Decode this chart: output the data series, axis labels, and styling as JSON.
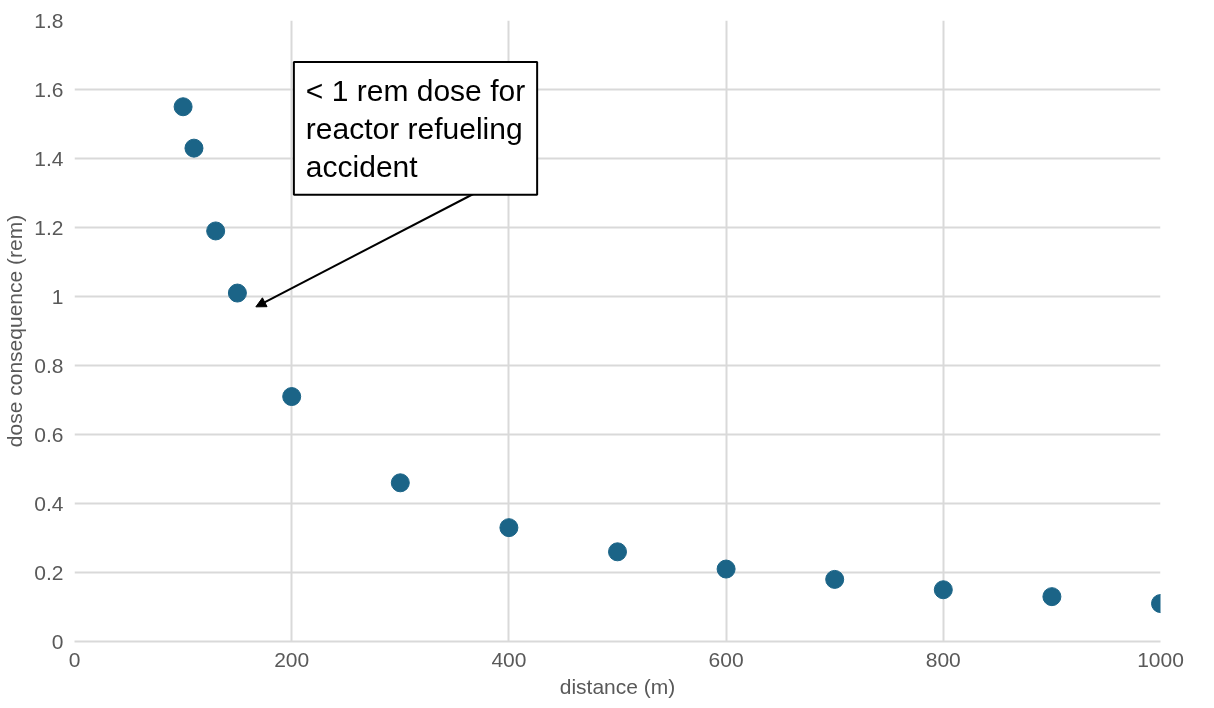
{
  "chart_data": {
    "type": "scatter",
    "xlabel": "distance (m)",
    "ylabel": "dose consequence (rem)",
    "x": [
      100,
      110,
      130,
      150,
      200,
      300,
      400,
      500,
      600,
      700,
      800,
      900,
      1000
    ],
    "series": [
      {
        "color": "#1b6487",
        "values": [
          1.55,
          1.43,
          1.19,
          1.01,
          0.71,
          0.46,
          0.33,
          0.26,
          0.21,
          0.18,
          0.15,
          0.13,
          0.11
        ]
      }
    ],
    "xlim": [
      0,
      1000
    ],
    "ylim": [
      0,
      1.8
    ],
    "xticks": [
      0,
      200,
      400,
      600,
      800,
      1000
    ],
    "yticks": [
      0,
      0.2,
      0.4,
      0.6,
      0.8,
      1,
      1.2,
      1.4,
      1.6,
      1.8
    ],
    "grid": true,
    "marker": "circle",
    "annotations": [
      "< 1 rem dose for\nreactor refueling\naccident"
    ]
  }
}
